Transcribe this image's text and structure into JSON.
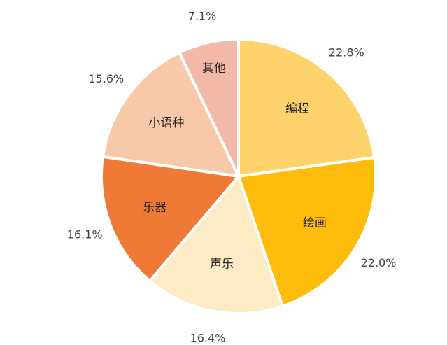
{
  "chart_data": {
    "type": "pie",
    "title": "",
    "slices": [
      {
        "label": "编程",
        "value": 22.8,
        "percent_text": "22.8%",
        "color": "#FFD36B"
      },
      {
        "label": "绘画",
        "value": 22.0,
        "percent_text": "22.0%",
        "color": "#FFBC0A"
      },
      {
        "label": "声乐",
        "value": 16.4,
        "percent_text": "16.4%",
        "color": "#FDEBC6"
      },
      {
        "label": "乐器",
        "value": 16.1,
        "percent_text": "16.1%",
        "color": "#EE7A35"
      },
      {
        "label": "小语种",
        "value": 15.6,
        "percent_text": "15.6%",
        "color": "#F8C9A9"
      },
      {
        "label": "其他",
        "value": 7.1,
        "percent_text": "7.1%",
        "color": "#F2B8A8"
      }
    ]
  }
}
